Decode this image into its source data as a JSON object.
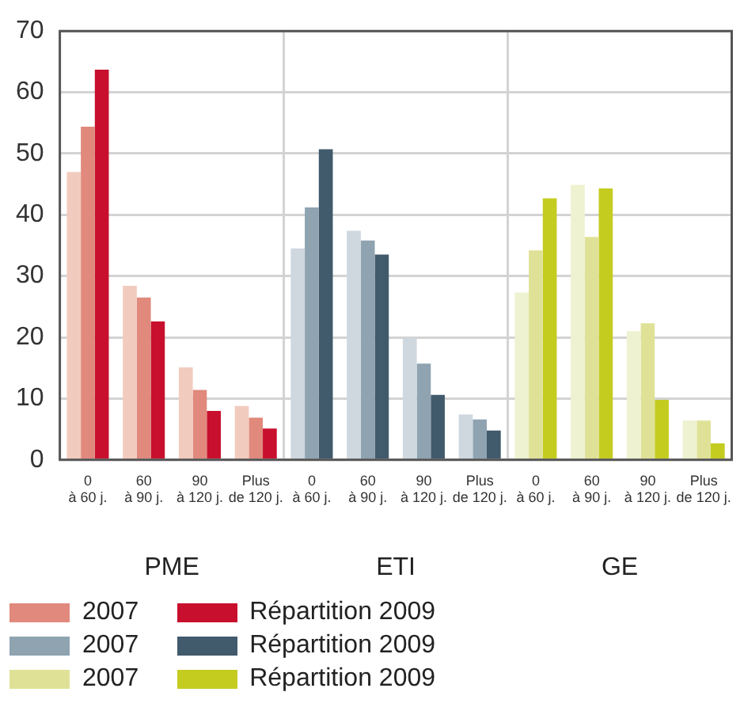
{
  "chart_data": {
    "type": "bar",
    "categories": [
      "0 à 60 j.",
      "60 à 90 j.",
      "90 à 120 j.",
      "Plus de 120 j.",
      "0 à 60 j.",
      "60 à 90 j.",
      "90 à 120 j.",
      "Plus de 120 j.",
      "0 à 60 j.",
      "60 à 90 j.",
      "90 à 120 j.",
      "Plus de 120 j."
    ],
    "series": [
      {
        "color": "#f2cbbf",
        "values": [
          47.0,
          28.4,
          15.1,
          8.8,
          null,
          null,
          null,
          null,
          null,
          null,
          null,
          null
        ]
      },
      {
        "name": "2007",
        "color": "#e0897c",
        "values": [
          54.4,
          26.5,
          11.4,
          6.9,
          null,
          null,
          null,
          null,
          null,
          null,
          null,
          null
        ]
      },
      {
        "name": "Répartition 2009",
        "color": "#c8102e",
        "values": [
          63.7,
          22.6,
          8.0,
          5.1,
          null,
          null,
          null,
          null,
          null,
          null,
          null,
          null
        ]
      },
      {
        "color": "#cfd7df",
        "values": [
          null,
          null,
          null,
          null,
          34.5,
          37.4,
          19.9,
          7.4,
          null,
          null,
          null,
          null
        ]
      },
      {
        "name": "2007",
        "color": "#8fa3b1",
        "values": [
          null,
          null,
          null,
          null,
          41.2,
          35.8,
          15.7,
          6.6,
          null,
          null,
          null,
          null
        ]
      },
      {
        "name": "Répartition 2009",
        "color": "#415a6c",
        "values": [
          null,
          null,
          null,
          null,
          50.7,
          33.5,
          10.6,
          4.8,
          null,
          null,
          null,
          null
        ]
      },
      {
        "color": "#eef2d0",
        "values": [
          null,
          null,
          null,
          null,
          null,
          null,
          null,
          null,
          27.3,
          44.9,
          21.0,
          6.4
        ]
      },
      {
        "name": "2007",
        "color": "#dfe296",
        "values": [
          null,
          null,
          null,
          null,
          null,
          null,
          null,
          null,
          34.2,
          36.4,
          22.3,
          6.4
        ]
      },
      {
        "name": "Répartition 2009",
        "color": "#c4cc20",
        "values": [
          null,
          null,
          null,
          null,
          null,
          null,
          null,
          null,
          42.7,
          44.3,
          9.8,
          2.7
        ]
      }
    ],
    "annotations": [
      "PME",
      "ETI",
      "GE"
    ],
    "ylim": [
      0,
      70
    ],
    "yticks": [
      0,
      10,
      20,
      30,
      40,
      50,
      60,
      70
    ],
    "grid": "y",
    "legend": "bottom left"
  }
}
